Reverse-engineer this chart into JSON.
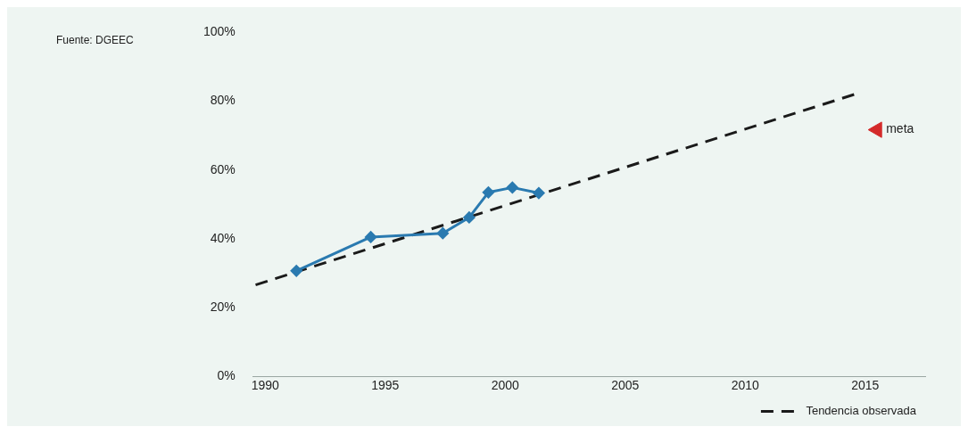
{
  "chart_data": {
    "type": "line",
    "annotations": [
      "Fuente: DGEEC"
    ],
    "series": [
      {
        "type": "line",
        "color": "#2a7ab0",
        "marker": "diamond",
        "x": [
          1991.3,
          1994.4,
          1997.4,
          1998.5,
          1999.3,
          2000.3,
          2001.4
        ],
        "values": [
          30.7,
          40.5,
          41.6,
          46.2,
          53.5,
          54.9,
          53.3
        ]
      },
      {
        "type": "line",
        "name": "Tendencia observada",
        "color": "#1a1a1a",
        "marker": "none",
        "line_style": "dashed",
        "x": [
          1989.6,
          2014.6
        ],
        "values": [
          26.6,
          82.1
        ]
      },
      {
        "type": "scatter",
        "name": "meta",
        "color": "#d42a2a",
        "marker": "triangle",
        "x": [
          2015.5
        ],
        "values": [
          71.7
        ]
      }
    ],
    "xlim": [
      1989.5,
      2017.5
    ],
    "xticks": [
      1990,
      1995,
      2000,
      2005,
      2010,
      2015
    ],
    "ylim": [
      0,
      100
    ],
    "yticks": [
      {
        "value": 0,
        "label": "0%"
      },
      {
        "value": 20,
        "label": "20%"
      },
      {
        "value": 40,
        "label": "40%"
      },
      {
        "value": 60,
        "label": "60%"
      },
      {
        "value": 80,
        "label": "80%"
      },
      {
        "value": 100,
        "label": "100%"
      }
    ],
    "grid": false,
    "legend": "bottom right"
  }
}
